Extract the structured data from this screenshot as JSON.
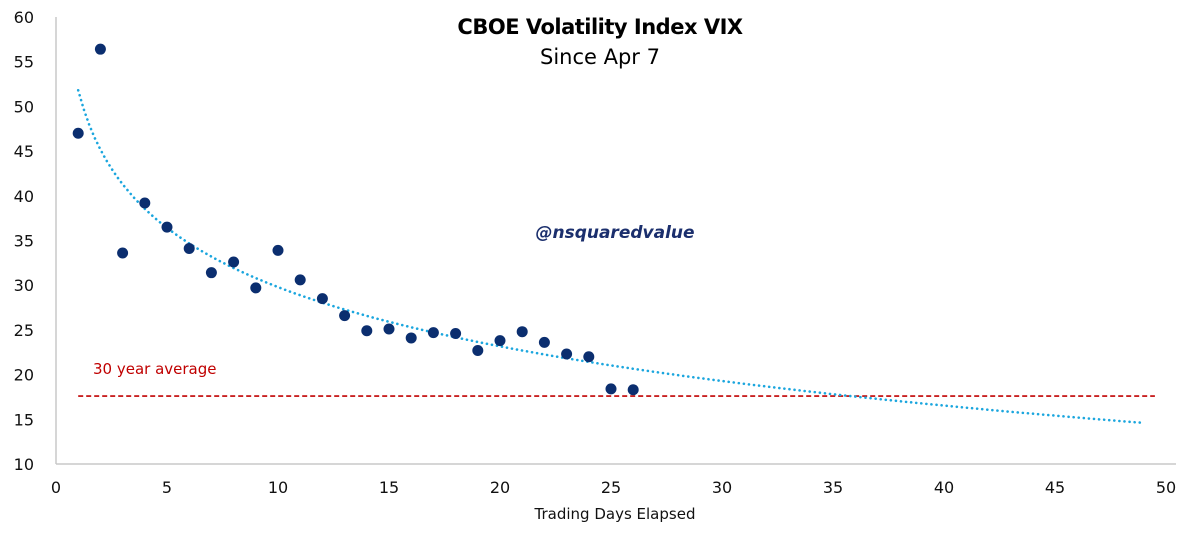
{
  "chart_data": {
    "type": "scatter",
    "title": "CBOE Volatility Index VIX",
    "subtitle": "Since Apr 7",
    "xlabel": "Trading Days Elapsed",
    "ylabel": "",
    "xlim": [
      0,
      50
    ],
    "ylim": [
      10,
      60
    ],
    "xticks": [
      "0",
      "5",
      "10",
      "15",
      "20",
      "25",
      "30",
      "35",
      "40",
      "45",
      "50"
    ],
    "yticks": [
      "10",
      "15",
      "20",
      "25",
      "30",
      "35",
      "40",
      "45",
      "50",
      "55",
      "60"
    ],
    "grid": false,
    "series": [
      {
        "name": "VIX",
        "color": "#0b2e6f",
        "x": [
          1,
          2,
          3,
          4,
          5,
          6,
          7,
          8,
          9,
          10,
          11,
          12,
          13,
          14,
          15,
          16,
          17,
          18,
          19,
          20,
          21,
          22,
          23,
          24,
          25,
          26
        ],
        "y": [
          47.0,
          56.4,
          33.6,
          39.2,
          36.5,
          34.1,
          31.4,
          32.6,
          29.7,
          33.9,
          30.6,
          28.5,
          26.6,
          24.9,
          25.1,
          24.1,
          24.7,
          24.6,
          22.7,
          23.8,
          24.8,
          23.6,
          22.3,
          22.0,
          18.4,
          18.3
        ]
      }
    ],
    "trendline": {
      "type": "logarithmic",
      "color": "#1ba6de",
      "x_range": [
        1,
        49
      ],
      "intercept": 51.8,
      "slope": -9.56
    },
    "reference_line": {
      "label": "30 year average",
      "value": 17.6,
      "x_range": [
        1,
        49.5
      ],
      "color": "#c00000"
    },
    "annotations": [
      {
        "text": "@nsquaredvalue",
        "color": "#1b2f6d"
      }
    ]
  }
}
